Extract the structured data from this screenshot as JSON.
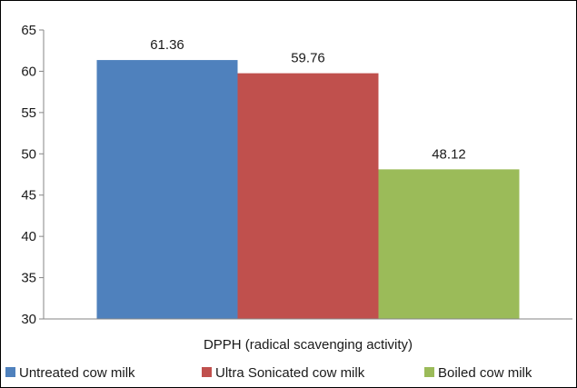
{
  "chart_data": {
    "type": "bar",
    "title": "",
    "xlabel": "DPPH (radical scavenging activity)",
    "ylabel": "",
    "ylim": [
      30,
      65
    ],
    "yticks": [
      30,
      35,
      40,
      45,
      50,
      55,
      60,
      65
    ],
    "grid": false,
    "legend_position": "bottom",
    "categories": [
      "DPPH (radical scavenging activity)"
    ],
    "series": [
      {
        "name": "Untreated cow milk",
        "values": [
          61.36
        ],
        "value_label": "61.36",
        "color": "#4F81BD"
      },
      {
        "name": "Ultra Sonicated cow milk",
        "values": [
          59.76
        ],
        "value_label": "59.76",
        "color": "#C0504D"
      },
      {
        "name": "Boiled cow milk",
        "values": [
          48.12
        ],
        "value_label": "48.12",
        "color": "#9BBB59"
      }
    ]
  }
}
